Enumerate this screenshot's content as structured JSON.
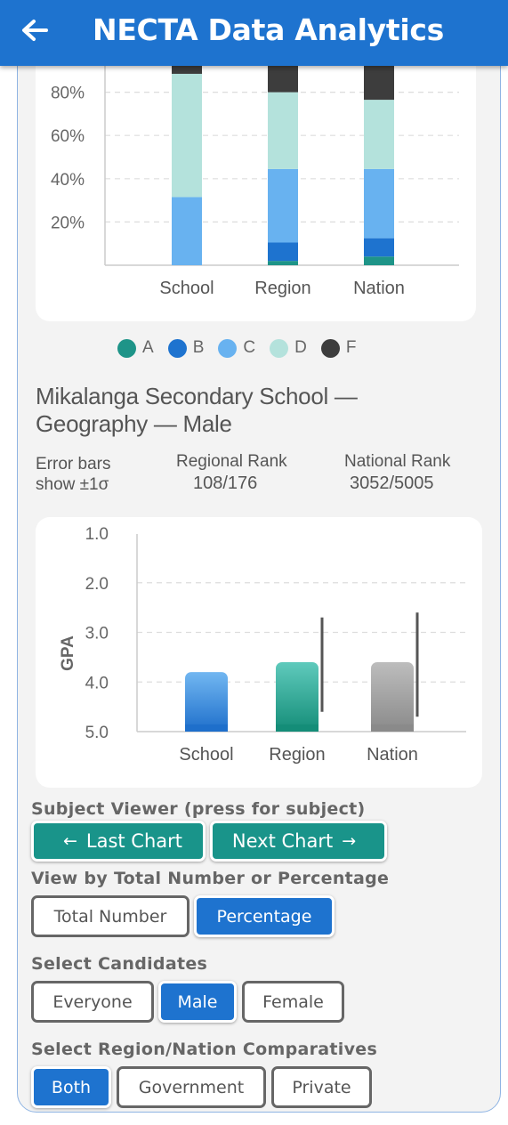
{
  "app": {
    "title": "NECTA Data Analytics",
    "back_icon": "arrow-left-icon"
  },
  "colors": {
    "appbar": "#1e73cf",
    "A": "#1e9488",
    "B": "#1e73cf",
    "C": "#68b2f0",
    "D": "#b4e2dc",
    "F": "#3d3d3d"
  },
  "distribution_chart": {
    "chart_data": {
      "type": "bar",
      "stacked": true,
      "categories": [
        "School",
        "Region",
        "Nation"
      ],
      "series": [
        {
          "name": "A",
          "values": [
            0,
            2,
            4
          ]
        },
        {
          "name": "B",
          "values": [
            0,
            8.5,
            8.5
          ]
        },
        {
          "name": "C",
          "values": [
            31.5,
            34,
            32
          ]
        },
        {
          "name": "D",
          "values": [
            57,
            35.5,
            32
          ]
        },
        {
          "name": "F",
          "values": [
            11.5,
            20,
            23.5
          ]
        }
      ],
      "y_ticks": [
        "20%",
        "40%",
        "60%",
        "80%"
      ],
      "ylim": [
        0,
        100
      ],
      "grid": true
    },
    "legend": [
      {
        "key": "A",
        "label": "A"
      },
      {
        "key": "B",
        "label": "B"
      },
      {
        "key": "C",
        "label": "C"
      },
      {
        "key": "D",
        "label": "D"
      },
      {
        "key": "F",
        "label": "F"
      }
    ]
  },
  "school_title": "Mikalanga Secondary School — Geography — Male",
  "stats": {
    "error_bars_line1": "Error bars",
    "error_bars_line2": "show ±1σ",
    "regional_label": "Regional Rank",
    "regional_value": "108/176",
    "national_label": "National Rank",
    "national_value": "3052/5005"
  },
  "gpa_chart": {
    "chart_data": {
      "type": "bar",
      "categories": [
        "School",
        "Region",
        "Nation"
      ],
      "values": [
        3.8,
        3.6,
        3.6
      ],
      "error_bars": [
        {
          "low": null,
          "high": null
        },
        {
          "low": 2.7,
          "high": 4.6
        },
        {
          "low": 2.6,
          "high": 4.7
        }
      ],
      "ylabel": "GPA",
      "y_ticks": [
        "1.0",
        "2.0",
        "3.0",
        "4.0",
        "5.0"
      ],
      "ylim": [
        1.0,
        5.0
      ],
      "y_inverted": true,
      "grid": true
    },
    "bar_colors": [
      {
        "top": "#72b7f1",
        "bottom": "#1e6fcb"
      },
      {
        "top": "#5fcabc",
        "bottom": "#148d78"
      },
      {
        "top": "#bdbdbd",
        "bottom": "#8a8a8a"
      }
    ]
  },
  "controls": {
    "subject_viewer_label": "Subject Viewer (press for subject)",
    "last_chart": "Last Chart",
    "next_chart": "Next Chart",
    "view_by_label": "View by Total Number or Percentage",
    "total_number": "Total Number",
    "percentage": "Percentage",
    "view_by_selected": "Percentage",
    "candidates_label": "Select Candidates",
    "everyone": "Everyone",
    "male": "Male",
    "female": "Female",
    "candidates_selected": "Male",
    "comparatives_label": "Select Region/Nation Comparatives",
    "both": "Both",
    "government": "Government",
    "private": "Private",
    "comparatives_selected": "Both"
  }
}
